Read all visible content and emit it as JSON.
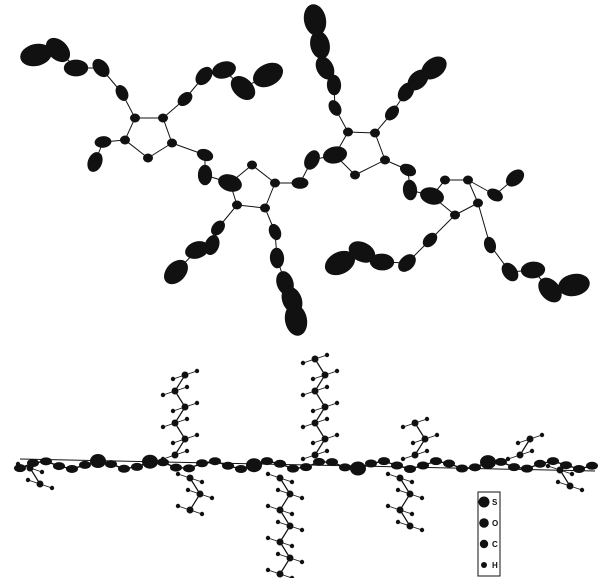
{
  "legend": {
    "items": [
      "S",
      "O",
      "C",
      "H"
    ]
  }
}
